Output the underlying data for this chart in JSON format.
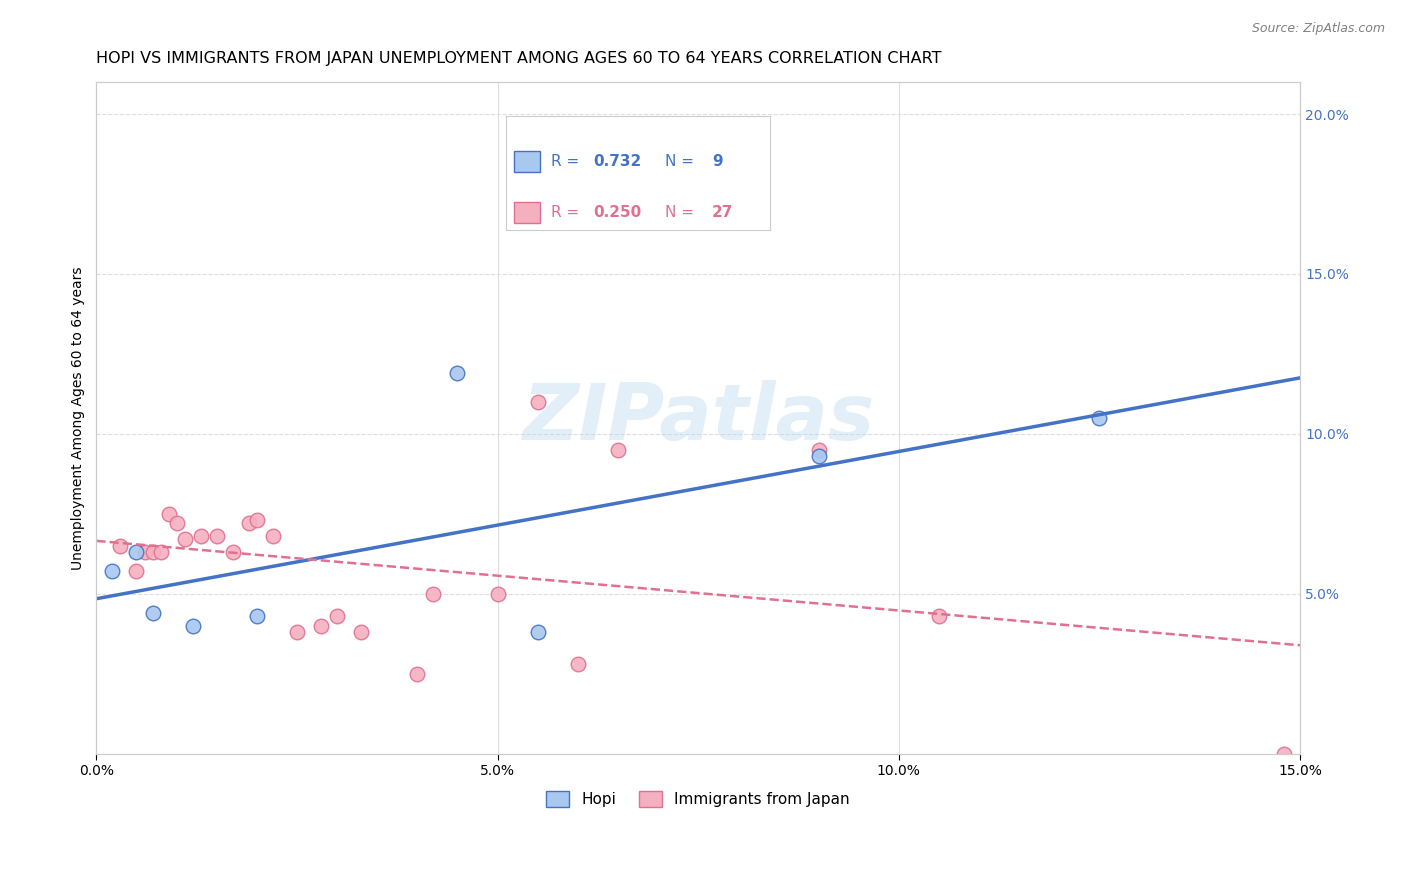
{
  "title": "HOPI VS IMMIGRANTS FROM JAPAN UNEMPLOYMENT AMONG AGES 60 TO 64 YEARS CORRELATION CHART",
  "source": "Source: ZipAtlas.com",
  "ylabel": "Unemployment Among Ages 60 to 64 years",
  "xlim": [
    0.0,
    0.15
  ],
  "ylim": [
    0.0,
    0.21
  ],
  "xticks": [
    0.0,
    0.05,
    0.1,
    0.15
  ],
  "yticks_right": [
    0.05,
    0.1,
    0.15,
    0.2
  ],
  "xticklabels": [
    "0.0%",
    "5.0%",
    "10.0%",
    "15.0%"
  ],
  "yticklabels_right": [
    "5.0%",
    "10.0%",
    "15.0%",
    "20.0%"
  ],
  "hopi_color": "#A8C8F0",
  "japan_color": "#F5B0C0",
  "hopi_line_color": "#4472C4",
  "japan_line_color": "#E07090",
  "background_color": "#FFFFFF",
  "grid_color": "#DDDDDD",
  "hopi_x": [
    0.002,
    0.005,
    0.007,
    0.012,
    0.02,
    0.045,
    0.055,
    0.09,
    0.125
  ],
  "hopi_y": [
    0.057,
    0.063,
    0.044,
    0.04,
    0.043,
    0.119,
    0.038,
    0.093,
    0.105
  ],
  "japan_x": [
    0.003,
    0.005,
    0.006,
    0.007,
    0.008,
    0.009,
    0.01,
    0.011,
    0.013,
    0.015,
    0.017,
    0.019,
    0.02,
    0.022,
    0.025,
    0.028,
    0.03,
    0.033,
    0.04,
    0.042,
    0.05,
    0.055,
    0.06,
    0.065,
    0.09,
    0.105,
    0.148
  ],
  "japan_y": [
    0.065,
    0.057,
    0.063,
    0.063,
    0.063,
    0.075,
    0.072,
    0.067,
    0.068,
    0.068,
    0.063,
    0.072,
    0.073,
    0.068,
    0.038,
    0.04,
    0.043,
    0.038,
    0.025,
    0.05,
    0.05,
    0.11,
    0.028,
    0.095,
    0.095,
    0.043,
    0.0
  ],
  "watermark_text": "ZIPatlas",
  "marker_size": 110,
  "title_fontsize": 11.5,
  "axis_label_fontsize": 10,
  "tick_fontsize": 10,
  "legend_fontsize": 12
}
